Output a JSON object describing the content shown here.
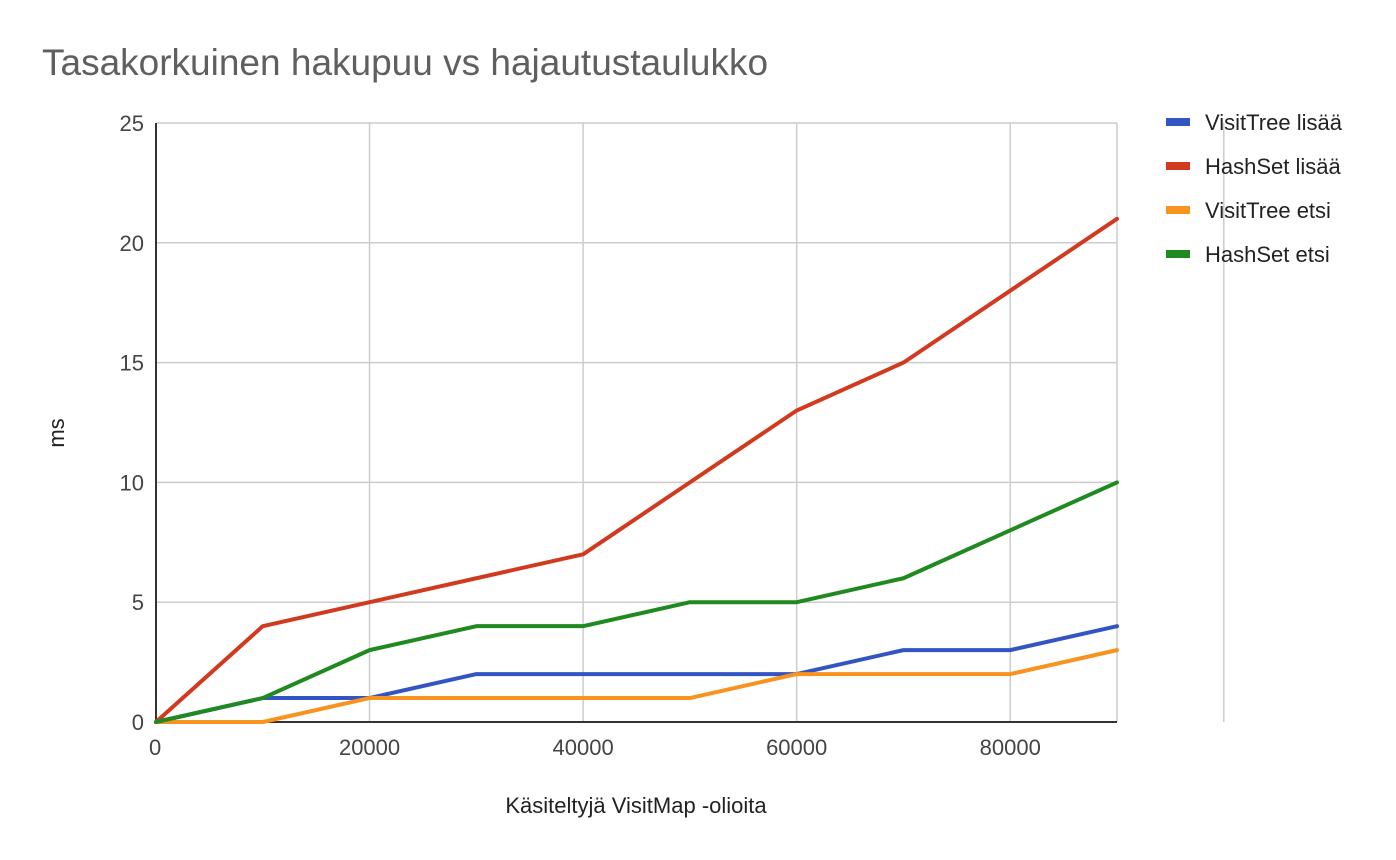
{
  "chart_data": {
    "type": "line",
    "title": "Tasakorkuinen hakupuu vs hajautustaulukko",
    "xlabel": "Käsiteltyjä VisitMap -olioita",
    "ylabel": "ms",
    "x": [
      0,
      10000,
      20000,
      30000,
      40000,
      50000,
      60000,
      70000,
      80000,
      90000
    ],
    "xlim": [
      0,
      90000
    ],
    "ylim": [
      0,
      25
    ],
    "xticks": [
      0,
      20000,
      40000,
      60000,
      80000
    ],
    "xtick_labels": [
      "0",
      "20000",
      "40000",
      "60000",
      "80000"
    ],
    "yticks": [
      0,
      5,
      10,
      15,
      20,
      25
    ],
    "ytick_labels": [
      "0",
      "5",
      "10",
      "15",
      "20",
      "25"
    ],
    "grid": true,
    "legend_position": "right",
    "series": [
      {
        "name": "VisitTree lisää",
        "color": "#3355c4",
        "values": [
          0,
          1,
          1,
          2,
          2,
          2,
          2,
          3,
          3,
          4
        ]
      },
      {
        "name": "HashSet lisää",
        "color": "#d23a20",
        "values": [
          0,
          4,
          5,
          6,
          7,
          10,
          13,
          15,
          18,
          21
        ]
      },
      {
        "name": "VisitTree etsi",
        "color": "#f7931e",
        "values": [
          0,
          0,
          1,
          1,
          1,
          1,
          2,
          2,
          2,
          3
        ]
      },
      {
        "name": "HashSet etsi",
        "color": "#1f8a1f",
        "values": [
          0,
          1,
          3,
          4,
          4,
          5,
          5,
          6,
          8,
          10
        ]
      }
    ]
  }
}
